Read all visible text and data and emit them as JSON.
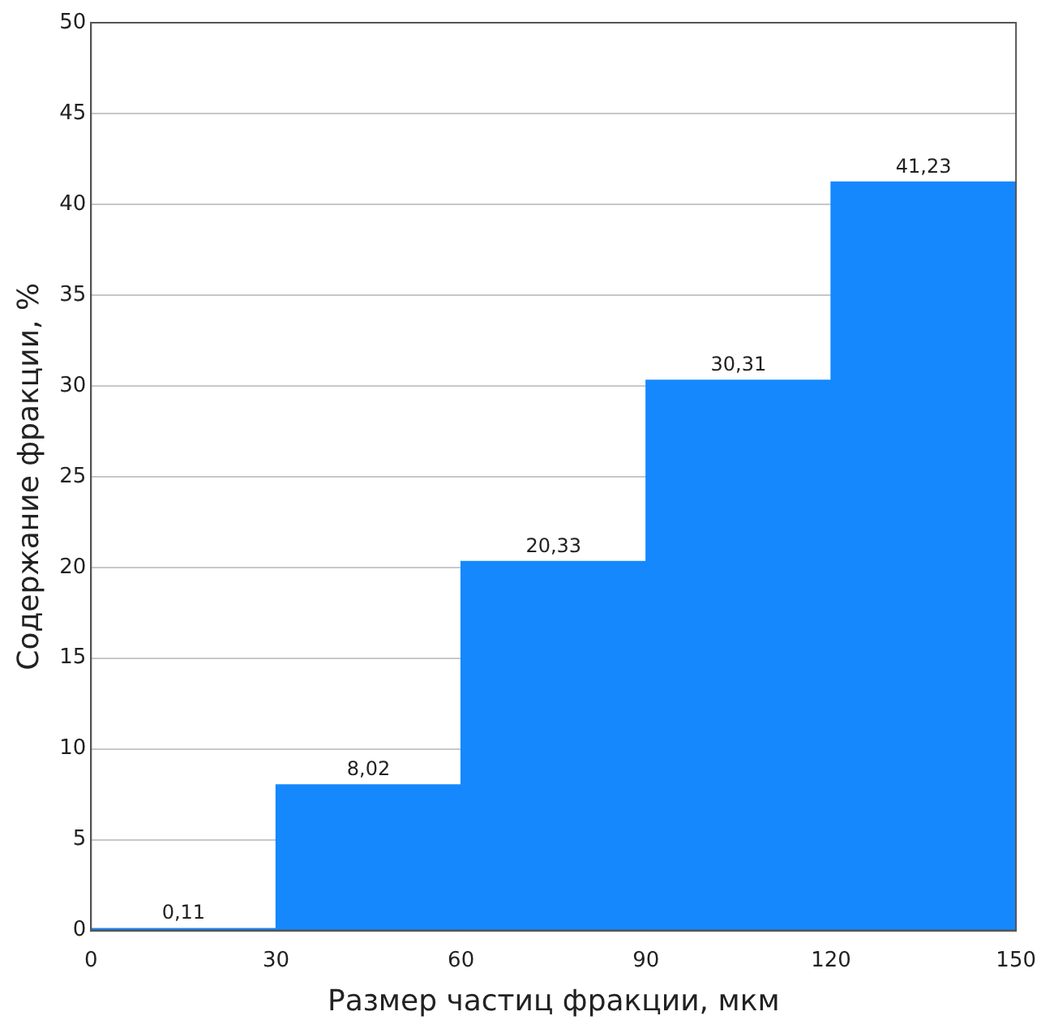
{
  "chart_data": {
    "type": "histogram",
    "xlabel": "Размер частиц фракции, мкм",
    "ylabel": "Содержание фракции, %",
    "bins": [
      0,
      30,
      60,
      90,
      120,
      150
    ],
    "values": [
      0.11,
      8.02,
      20.33,
      30.31,
      41.23
    ],
    "value_labels": [
      "0,11",
      "8,02",
      "20,33",
      "30,31",
      "41,23"
    ],
    "color": "#1488fc",
    "xlim": [
      0,
      150
    ],
    "xticks": [
      0,
      30,
      60,
      90,
      120,
      150
    ],
    "ylim": [
      0,
      50
    ],
    "yticks": [
      0,
      5,
      10,
      15,
      20,
      25,
      30,
      35,
      40,
      45,
      50
    ],
    "grid": "y",
    "legend": false
  }
}
